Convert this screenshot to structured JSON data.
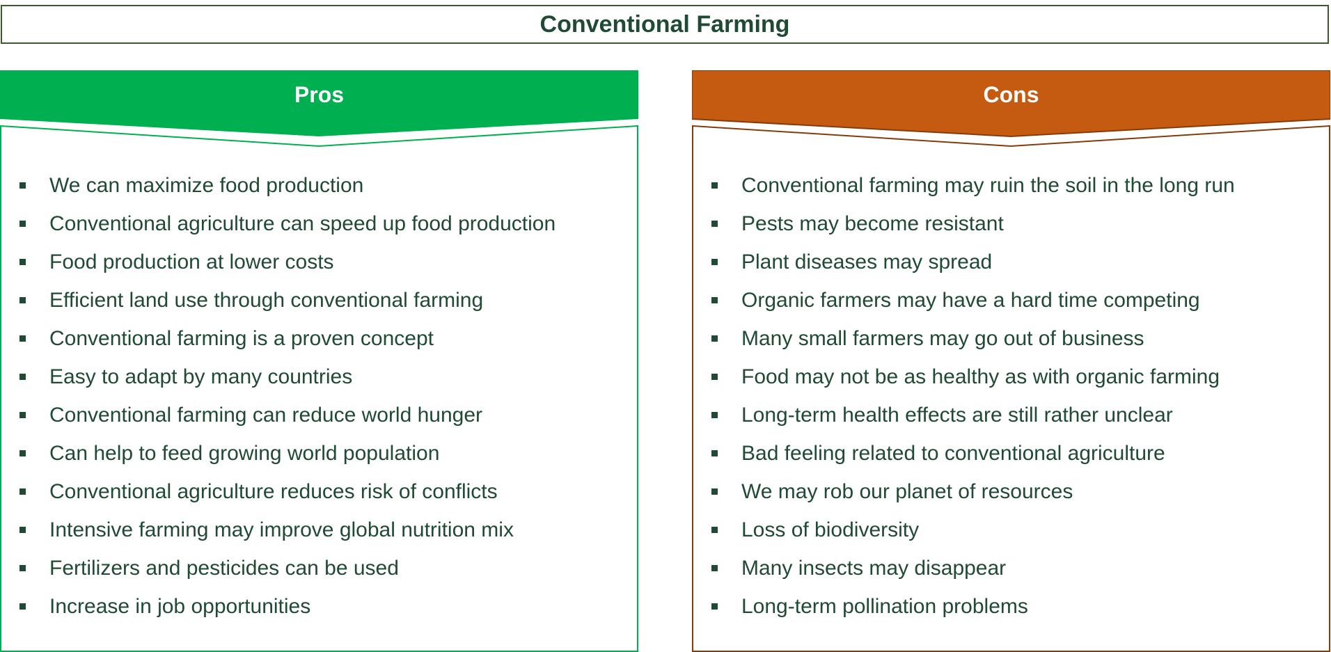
{
  "title": "Conventional Farming",
  "colors": {
    "pros_header": "#00b050",
    "pros_border": "#00b050",
    "cons_header": "#c55a11",
    "cons_border": "#843c0c",
    "text": "#1f4a33"
  },
  "pros": {
    "label": "Pros",
    "items": [
      "We can maximize food production",
      "Conventional agriculture can speed up food production",
      "Food production at lower costs",
      "Efficient land use through conventional farming",
      "Conventional farming is a proven concept",
      "Easy to adapt by many countries",
      "Conventional farming can reduce world hunger",
      "Can help to feed growing world population",
      "Conventional agriculture reduces risk of conflicts",
      "Intensive farming may improve global nutrition mix",
      "Fertilizers and pesticides can be used",
      "Increase in job opportunities"
    ]
  },
  "cons": {
    "label": "Cons",
    "items": [
      "Conventional farming may ruin the soil in the long run",
      "Pests may become resistant",
      "Plant diseases may spread",
      "Organic farmers may have a hard time competing",
      "Many small farmers may go out of business",
      "Food may not be as healthy as with organic farming",
      "Long-term health effects are still rather unclear",
      "Bad feeling related to conventional agriculture",
      "We may rob our planet of resources",
      "Loss of biodiversity",
      "Many insects may disappear",
      "Long-term pollination problems"
    ]
  }
}
